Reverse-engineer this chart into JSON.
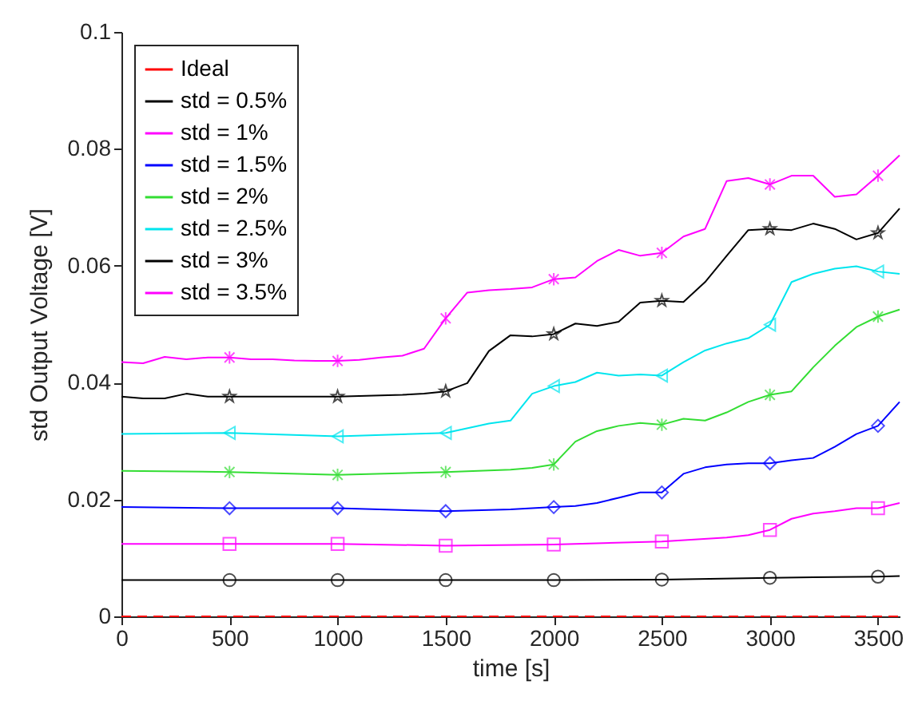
{
  "chart_data": {
    "type": "line",
    "xlabel": "time [s]",
    "ylabel": "std Output Voltage [V]",
    "xlim": [
      0,
      3600
    ],
    "xticks": [
      0,
      500,
      1000,
      1500,
      2000,
      2500,
      3000,
      3500
    ],
    "ylim": [
      0,
      0.1
    ],
    "yticks": [
      0,
      0.02,
      0.04,
      0.06,
      0.08,
      0.1
    ],
    "grid": false,
    "legend": "top left",
    "series": [
      {
        "name": "Ideal",
        "color": "#ff0000",
        "line_style": "dashed",
        "marker": "none",
        "x": [
          0,
          3600
        ],
        "values": [
          0,
          0
        ]
      },
      {
        "name": "std = 0.5%",
        "color": "#000000",
        "x": [
          0,
          500,
          1000,
          1500,
          2000,
          2500,
          3000,
          3500,
          3600
        ],
        "values": [
          0.0062,
          0.0062,
          0.0062,
          0.0062,
          0.0062,
          0.0063,
          0.0066,
          0.0068,
          0.0069
        ]
      },
      {
        "name": "std = 1%",
        "color": "#ff00ff",
        "x": [
          0,
          500,
          1000,
          1500,
          2000,
          2500,
          2800,
          2900,
          3000,
          3100,
          3200,
          3300,
          3400,
          3500,
          3600
        ],
        "values": [
          0.0124,
          0.0124,
          0.0124,
          0.0121,
          0.0123,
          0.0128,
          0.0135,
          0.0139,
          0.0148,
          0.0167,
          0.0176,
          0.018,
          0.0185,
          0.0185,
          0.0194
        ]
      },
      {
        "name": "std = 1.5%",
        "color": "#0000ff",
        "x": [
          0,
          500,
          1000,
          1500,
          1800,
          2000,
          2100,
          2200,
          2300,
          2400,
          2500,
          2600,
          2700,
          2800,
          2900,
          3000,
          3100,
          3200,
          3300,
          3400,
          3500,
          3600
        ],
        "values": [
          0.0187,
          0.0185,
          0.0185,
          0.018,
          0.0183,
          0.0187,
          0.0189,
          0.0194,
          0.0203,
          0.0212,
          0.0212,
          0.0244,
          0.0255,
          0.026,
          0.0262,
          0.0262,
          0.0267,
          0.0271,
          0.029,
          0.0312,
          0.0326,
          0.0367
        ]
      },
      {
        "name": "std = 2%",
        "color": "#33dd33",
        "x": [
          0,
          500,
          1000,
          1500,
          1800,
          1900,
          2000,
          2100,
          2200,
          2300,
          2400,
          2500,
          2600,
          2700,
          2800,
          2900,
          3000,
          3100,
          3200,
          3300,
          3400,
          3500,
          3600
        ],
        "values": [
          0.0249,
          0.0247,
          0.0242,
          0.0247,
          0.0251,
          0.0254,
          0.026,
          0.0299,
          0.0317,
          0.0326,
          0.0331,
          0.0328,
          0.0338,
          0.0335,
          0.0349,
          0.0367,
          0.0379,
          0.0385,
          0.0426,
          0.0463,
          0.0495,
          0.0513,
          0.0525
        ]
      },
      {
        "name": "std = 2.5%",
        "color": "#00e5ee",
        "x": [
          0,
          500,
          1000,
          1500,
          1700,
          1800,
          1900,
          2000,
          2100,
          2200,
          2300,
          2400,
          2500,
          2600,
          2700,
          2800,
          2900,
          3000,
          3100,
          3200,
          3300,
          3400,
          3500,
          3600
        ],
        "values": [
          0.0312,
          0.0314,
          0.0308,
          0.0314,
          0.033,
          0.0335,
          0.0381,
          0.0394,
          0.0401,
          0.0417,
          0.0412,
          0.0414,
          0.0412,
          0.0435,
          0.0455,
          0.0467,
          0.0476,
          0.0499,
          0.0572,
          0.0586,
          0.0595,
          0.0599,
          0.059,
          0.0586
        ]
      },
      {
        "name": "std = 3%",
        "color": "#000000",
        "x": [
          0,
          100,
          200,
          300,
          400,
          500,
          600,
          700,
          800,
          900,
          1000,
          1100,
          1200,
          1300,
          1400,
          1500,
          1600,
          1700,
          1800,
          1900,
          2000,
          2100,
          2200,
          2300,
          2400,
          2500,
          2600,
          2700,
          2800,
          2900,
          3000,
          3100,
          3200,
          3300,
          3400,
          3500,
          3600
        ],
        "values": [
          0.0376,
          0.0373,
          0.0373,
          0.0381,
          0.0376,
          0.0376,
          0.0376,
          0.0376,
          0.0376,
          0.0376,
          0.0376,
          0.0377,
          0.0378,
          0.0379,
          0.0381,
          0.0385,
          0.0399,
          0.0454,
          0.0481,
          0.0479,
          0.0483,
          0.0501,
          0.0497,
          0.0504,
          0.0537,
          0.054,
          0.0538,
          0.0572,
          0.0617,
          0.0661,
          0.0663,
          0.0661,
          0.0672,
          0.0663,
          0.0645,
          0.0656,
          0.0698
        ]
      },
      {
        "name": "std = 3.5%",
        "color": "#ff00ff",
        "x": [
          0,
          100,
          200,
          300,
          400,
          500,
          600,
          700,
          800,
          900,
          1000,
          1100,
          1200,
          1300,
          1400,
          1500,
          1600,
          1700,
          1800,
          1900,
          2000,
          2100,
          2200,
          2300,
          2400,
          2500,
          2600,
          2700,
          2800,
          2900,
          3000,
          3100,
          3200,
          3300,
          3400,
          3500,
          3600
        ],
        "values": [
          0.0435,
          0.0433,
          0.0444,
          0.044,
          0.0443,
          0.0443,
          0.044,
          0.044,
          0.0438,
          0.0437,
          0.0437,
          0.0439,
          0.0443,
          0.0446,
          0.0458,
          0.051,
          0.0554,
          0.0558,
          0.056,
          0.0563,
          0.0577,
          0.058,
          0.0608,
          0.0627,
          0.0617,
          0.0622,
          0.065,
          0.0663,
          0.0745,
          0.075,
          0.0739,
          0.0754,
          0.0754,
          0.0718,
          0.0722,
          0.0754,
          0.0789
        ]
      },
      {
        "type": "scatter",
        "color": "#000000",
        "marker": "circle",
        "x": [
          500,
          1000,
          1500,
          2000,
          2500,
          3000,
          3500
        ],
        "values": [
          0.0062,
          0.0062,
          0.0062,
          0.0062,
          0.0063,
          0.0066,
          0.0068
        ]
      },
      {
        "type": "scatter",
        "color": "#ff00ff",
        "marker": "square",
        "x": [
          500,
          1000,
          1500,
          2000,
          2500,
          3000,
          3500
        ],
        "values": [
          0.0124,
          0.0124,
          0.0121,
          0.0123,
          0.0128,
          0.0148,
          0.0185
        ]
      },
      {
        "type": "scatter",
        "color": "#0000ff",
        "marker": "diamond",
        "x": [
          500,
          1000,
          1500,
          2000,
          2500,
          3000,
          3500
        ],
        "values": [
          0.0185,
          0.0185,
          0.018,
          0.0187,
          0.0212,
          0.0262,
          0.0326
        ]
      },
      {
        "type": "scatter",
        "color": "#33dd33",
        "marker": "cross",
        "x": [
          500,
          1000,
          1500,
          2000,
          2500,
          3000,
          3500
        ],
        "values": [
          0.0247,
          0.0242,
          0.0247,
          0.026,
          0.0328,
          0.0379,
          0.0513
        ]
      },
      {
        "type": "scatter",
        "color": "#00e5ee",
        "marker": "triangle",
        "x": [
          500,
          1000,
          1500,
          2000,
          2500,
          3000,
          3500
        ],
        "values": [
          0.0314,
          0.0308,
          0.0314,
          0.0394,
          0.0412,
          0.0499,
          0.059
        ]
      },
      {
        "type": "scatter",
        "color": "#000000",
        "marker": "star",
        "x": [
          500,
          1000,
          1500,
          2000,
          2500,
          3000,
          3500
        ],
        "values": [
          0.0376,
          0.0376,
          0.0385,
          0.0483,
          0.054,
          0.0663,
          0.0656
        ]
      },
      {
        "type": "scatter",
        "color": "#ff00ff",
        "marker": "cross",
        "x": [
          500,
          1000,
          1500,
          2000,
          2500,
          3000,
          3500
        ],
        "values": [
          0.0443,
          0.0437,
          0.051,
          0.0577,
          0.0622,
          0.0739,
          0.0754
        ]
      }
    ]
  }
}
